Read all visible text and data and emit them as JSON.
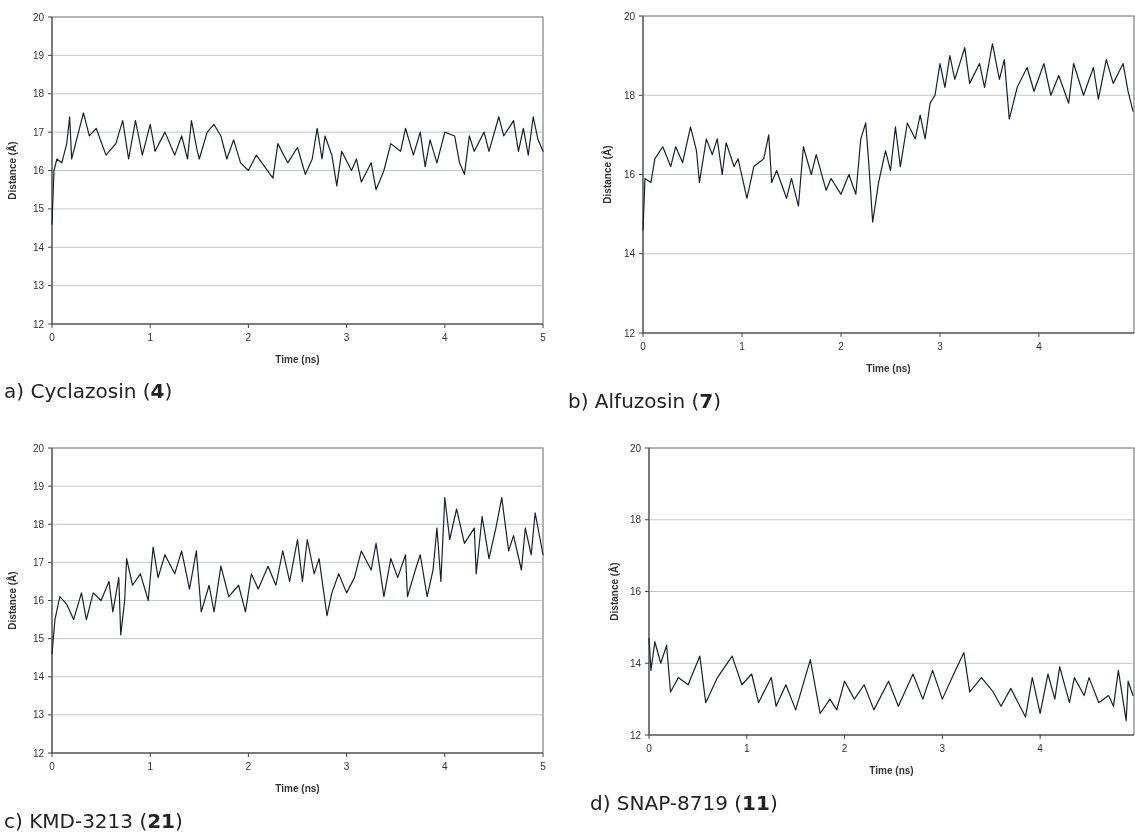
{
  "chart_data": [
    {
      "type": "line",
      "title": "a) Cyclazosin (4)",
      "xlabel": "Time (ns)",
      "ylabel": "Distance (Å)",
      "xlim": [
        0,
        5
      ],
      "xticks": [
        0,
        1,
        2,
        3,
        4,
        5
      ],
      "ylim": [
        12,
        20
      ],
      "yticks": [
        12,
        13,
        14,
        15,
        16,
        17,
        18,
        19,
        20
      ],
      "grid": "y",
      "series": [
        {
          "color": "#1c1f33",
          "x": [
            0,
            0.02,
            0.05,
            0.1,
            0.15,
            0.18,
            0.2,
            0.25,
            0.32,
            0.38,
            0.45,
            0.55,
            0.65,
            0.72,
            0.78,
            0.85,
            0.92,
            1.0,
            1.05,
            1.15,
            1.25,
            1.32,
            1.38,
            1.42,
            1.48,
            1.5,
            1.58,
            1.65,
            1.72,
            1.78,
            1.85,
            1.92,
            2.0,
            2.08,
            2.25,
            2.3,
            2.4,
            2.5,
            2.58,
            2.65,
            2.7,
            2.75,
            2.78,
            2.85,
            2.9,
            2.95,
            3.05,
            3.1,
            3.15,
            3.25,
            3.3,
            3.38,
            3.45,
            3.55,
            3.6,
            3.68,
            3.75,
            3.8,
            3.85,
            3.92,
            4.0,
            4.1,
            4.15,
            4.2,
            4.25,
            4.3,
            4.4,
            4.45,
            4.55,
            4.6,
            4.7,
            4.75,
            4.8,
            4.85,
            4.9,
            4.95,
            5.0
          ],
          "values": [
            14.6,
            16.0,
            16.3,
            16.2,
            16.7,
            17.4,
            16.3,
            16.8,
            17.5,
            16.9,
            17.1,
            16.4,
            16.7,
            17.3,
            16.3,
            17.3,
            16.4,
            17.2,
            16.5,
            17.0,
            16.4,
            16.9,
            16.3,
            17.3,
            16.5,
            16.3,
            17.0,
            17.2,
            16.9,
            16.3,
            16.8,
            16.2,
            16.0,
            16.4,
            15.8,
            16.7,
            16.2,
            16.6,
            15.9,
            16.3,
            17.1,
            16.3,
            16.9,
            16.4,
            15.6,
            16.5,
            16.0,
            16.3,
            15.7,
            16.2,
            15.5,
            16.0,
            16.7,
            16.5,
            17.1,
            16.4,
            17.0,
            16.1,
            16.8,
            16.2,
            17.0,
            16.9,
            16.2,
            15.9,
            16.9,
            16.5,
            17.0,
            16.5,
            17.4,
            16.9,
            17.3,
            16.5,
            17.1,
            16.4,
            17.4,
            16.8,
            16.5
          ]
        }
      ]
    },
    {
      "type": "line",
      "title": "b) Alfuzosin (7)",
      "xlabel": "Time (ns)",
      "ylabel": "Distance (Å)",
      "xlim": [
        0,
        4.96
      ],
      "xticks": [
        0,
        1,
        2,
        3,
        4
      ],
      "ylim": [
        12,
        20
      ],
      "yticks": [
        12,
        14,
        16,
        18,
        20
      ],
      "grid": "y",
      "series": [
        {
          "color": "#1c1f33",
          "x": [
            0,
            0.02,
            0.08,
            0.12,
            0.2,
            0.28,
            0.33,
            0.4,
            0.48,
            0.54,
            0.57,
            0.64,
            0.7,
            0.75,
            0.8,
            0.84,
            0.92,
            0.96,
            1.05,
            1.12,
            1.22,
            1.27,
            1.3,
            1.35,
            1.45,
            1.5,
            1.57,
            1.62,
            1.7,
            1.75,
            1.85,
            1.9,
            2.0,
            2.08,
            2.15,
            2.2,
            2.25,
            2.28,
            2.32,
            2.38,
            2.45,
            2.5,
            2.55,
            2.6,
            2.67,
            2.75,
            2.8,
            2.85,
            2.9,
            2.95,
            3.0,
            3.05,
            3.1,
            3.15,
            3.25,
            3.3,
            3.4,
            3.45,
            3.53,
            3.6,
            3.65,
            3.7,
            3.78,
            3.88,
            3.95,
            4.05,
            4.12,
            4.2,
            4.3,
            4.35,
            4.45,
            4.55,
            4.6,
            4.68,
            4.75,
            4.85,
            4.9,
            4.95
          ],
          "values": [
            14.6,
            15.9,
            15.8,
            16.4,
            16.7,
            16.2,
            16.7,
            16.3,
            17.2,
            16.6,
            15.8,
            16.9,
            16.5,
            16.9,
            16.0,
            16.8,
            16.2,
            16.4,
            15.4,
            16.2,
            16.4,
            17.0,
            15.8,
            16.1,
            15.4,
            15.9,
            15.2,
            16.7,
            16.0,
            16.5,
            15.6,
            15.9,
            15.5,
            16.0,
            15.5,
            16.9,
            17.3,
            16.3,
            14.8,
            15.8,
            16.6,
            16.1,
            17.2,
            16.2,
            17.3,
            16.9,
            17.5,
            16.9,
            17.8,
            18.0,
            18.8,
            18.2,
            19.0,
            18.4,
            19.2,
            18.3,
            18.8,
            18.2,
            19.3,
            18.4,
            18.9,
            17.4,
            18.2,
            18.7,
            18.1,
            18.8,
            18.0,
            18.5,
            17.8,
            18.8,
            18.0,
            18.7,
            17.9,
            18.9,
            18.3,
            18.8,
            18.1,
            17.6
          ]
        }
      ]
    },
    {
      "type": "line",
      "title": "c) KMD-3213 (21)",
      "xlabel": "Time (ns)",
      "ylabel": "Distance (Å)",
      "xlim": [
        0,
        5
      ],
      "xticks": [
        0,
        1,
        2,
        3,
        4,
        5
      ],
      "ylim": [
        12,
        20
      ],
      "yticks": [
        12,
        13,
        14,
        15,
        16,
        17,
        18,
        19,
        20
      ],
      "grid": "y",
      "series": [
        {
          "color": "#1c1f33",
          "x": [
            0,
            0.03,
            0.08,
            0.15,
            0.22,
            0.3,
            0.35,
            0.42,
            0.5,
            0.58,
            0.62,
            0.68,
            0.7,
            0.74,
            0.76,
            0.82,
            0.9,
            0.98,
            1.03,
            1.08,
            1.15,
            1.25,
            1.32,
            1.4,
            1.47,
            1.52,
            1.6,
            1.65,
            1.72,
            1.8,
            1.9,
            1.97,
            2.03,
            2.1,
            2.2,
            2.28,
            2.35,
            2.42,
            2.5,
            2.55,
            2.6,
            2.67,
            2.72,
            2.8,
            2.85,
            2.92,
            3.0,
            3.08,
            3.15,
            3.25,
            3.3,
            3.38,
            3.45,
            3.52,
            3.6,
            3.62,
            3.7,
            3.75,
            3.82,
            3.88,
            3.92,
            3.96,
            4.0,
            4.05,
            4.12,
            4.2,
            4.3,
            4.32,
            4.38,
            4.45,
            4.52,
            4.58,
            4.65,
            4.7,
            4.78,
            4.82,
            4.88,
            4.92,
            5.0
          ],
          "values": [
            14.6,
            15.5,
            16.1,
            15.9,
            15.5,
            16.2,
            15.5,
            16.2,
            16.0,
            16.5,
            15.7,
            16.6,
            15.1,
            16.0,
            17.1,
            16.4,
            16.7,
            16.0,
            17.4,
            16.6,
            17.2,
            16.7,
            17.3,
            16.3,
            17.3,
            15.7,
            16.4,
            15.7,
            16.9,
            16.1,
            16.4,
            15.7,
            16.7,
            16.3,
            16.9,
            16.4,
            17.3,
            16.5,
            17.6,
            16.5,
            17.6,
            16.7,
            17.1,
            15.6,
            16.2,
            16.7,
            16.2,
            16.6,
            17.3,
            16.8,
            17.5,
            16.1,
            17.1,
            16.6,
            17.2,
            16.1,
            16.8,
            17.2,
            16.1,
            16.8,
            17.9,
            16.5,
            18.7,
            17.6,
            18.4,
            17.5,
            17.9,
            16.7,
            18.2,
            17.1,
            17.9,
            18.7,
            17.3,
            17.7,
            16.8,
            17.9,
            17.2,
            18.3,
            17.2
          ]
        }
      ]
    },
    {
      "type": "line",
      "title": "d) SNAP-8719 (11)",
      "xlabel": "Time (ns)",
      "ylabel": "Distance (Å)",
      "xlim": [
        0,
        4.96
      ],
      "xticks": [
        0,
        1,
        2,
        3,
        4
      ],
      "ylim": [
        12,
        20
      ],
      "yticks": [
        12,
        14,
        16,
        18,
        20
      ],
      "grid": "y",
      "series": [
        {
          "color": "#1c1f33",
          "x": [
            0,
            0.02,
            0.06,
            0.12,
            0.18,
            0.22,
            0.3,
            0.4,
            0.52,
            0.58,
            0.7,
            0.85,
            0.95,
            1.05,
            1.12,
            1.25,
            1.3,
            1.4,
            1.5,
            1.65,
            1.75,
            1.85,
            1.92,
            2.0,
            2.1,
            2.2,
            2.3,
            2.45,
            2.55,
            2.7,
            2.8,
            2.9,
            3.0,
            3.1,
            3.22,
            3.28,
            3.4,
            3.52,
            3.6,
            3.7,
            3.85,
            3.92,
            4.0,
            4.08,
            4.15,
            4.2,
            4.3,
            4.35,
            4.45,
            4.5,
            4.6,
            4.7,
            4.75,
            4.8,
            4.88,
            4.9,
            4.95
          ],
          "values": [
            14.7,
            13.8,
            14.6,
            14.0,
            14.5,
            13.2,
            13.6,
            13.4,
            14.2,
            12.9,
            13.6,
            14.2,
            13.4,
            13.7,
            12.9,
            13.6,
            12.8,
            13.4,
            12.7,
            14.1,
            12.6,
            13.0,
            12.7,
            13.5,
            13.0,
            13.4,
            12.7,
            13.5,
            12.8,
            13.7,
            13.0,
            13.8,
            13.0,
            13.6,
            14.3,
            13.2,
            13.6,
            13.2,
            12.8,
            13.3,
            12.5,
            13.6,
            12.6,
            13.7,
            13.0,
            13.9,
            12.9,
            13.6,
            13.1,
            13.6,
            12.9,
            13.1,
            12.8,
            13.8,
            12.4,
            13.5,
            13.1
          ]
        }
      ]
    }
  ]
}
